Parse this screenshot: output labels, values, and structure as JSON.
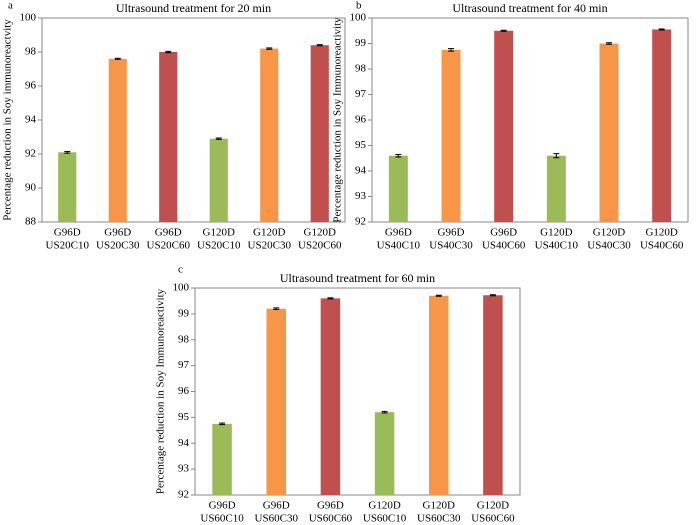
{
  "chart_data": [
    {
      "type": "bar",
      "label": "a",
      "title": "Ultrasound treatment for 20 min",
      "y_label": "Percentage reduction in Soy immunoreactvity",
      "categories": [
        [
          "G96D",
          "US20C10"
        ],
        [
          "G96D",
          "US20C30"
        ],
        [
          "G96D",
          "US20C60"
        ],
        [
          "G120D",
          "US20C10"
        ],
        [
          "G120D",
          "US20C30"
        ],
        [
          "G120D",
          "US20C60"
        ]
      ],
      "values": [
        92.1,
        97.6,
        98.0,
        92.9,
        98.2,
        98.4
      ],
      "errors": [
        0.05,
        0.03,
        0.04,
        0.04,
        0.04,
        0.03
      ],
      "colors": [
        "#9bbb59",
        "#f79646",
        "#c0504d",
        "#9bbb59",
        "#f79646",
        "#c0504d"
      ],
      "ylim": [
        88,
        100
      ],
      "yticks": [
        88,
        90,
        92,
        94,
        96,
        98,
        100
      ]
    },
    {
      "type": "bar",
      "label": "b",
      "title": "Ultrasound treatment for 40 min",
      "y_label": "Percentage reduction in Soy Immunoreactivity",
      "categories": [
        [
          "G96D",
          "US40C10"
        ],
        [
          "G96D",
          "US40C30"
        ],
        [
          "G96D",
          "US40C60"
        ],
        [
          "G120D",
          "US40C10"
        ],
        [
          "G120D",
          "US40C30"
        ],
        [
          "G120D",
          "US40C60"
        ]
      ],
      "values": [
        94.6,
        98.75,
        99.5,
        94.6,
        99.0,
        99.55
      ],
      "errors": [
        0.05,
        0.05,
        0.02,
        0.08,
        0.03,
        0.02
      ],
      "colors": [
        "#9bbb59",
        "#f79646",
        "#c0504d",
        "#9bbb59",
        "#f79646",
        "#c0504d"
      ],
      "ylim": [
        92,
        100
      ],
      "yticks": [
        92,
        93,
        94,
        95,
        96,
        97,
        98,
        99,
        100
      ]
    },
    {
      "type": "bar",
      "label": "c",
      "title": "Ultrasound treatment for 60 min",
      "y_label": "Percentage reduction in Soy Immunoreactivity",
      "categories": [
        [
          "G96D",
          "US60C10"
        ],
        [
          "G96D",
          "US60C30"
        ],
        [
          "G96D",
          "US60C60"
        ],
        [
          "G120D",
          "US60C10"
        ],
        [
          "G120D",
          "US60C30"
        ],
        [
          "G120D",
          "US60C60"
        ]
      ],
      "values": [
        94.75,
        99.2,
        99.6,
        95.2,
        99.7,
        99.72
      ],
      "errors": [
        0.03,
        0.03,
        0.02,
        0.03,
        0.02,
        0.02
      ],
      "colors": [
        "#9bbb59",
        "#f79646",
        "#c0504d",
        "#9bbb59",
        "#f79646",
        "#c0504d"
      ],
      "ylim": [
        92,
        100
      ],
      "yticks": [
        92,
        93,
        94,
        95,
        96,
        97,
        98,
        99,
        100
      ]
    }
  ]
}
